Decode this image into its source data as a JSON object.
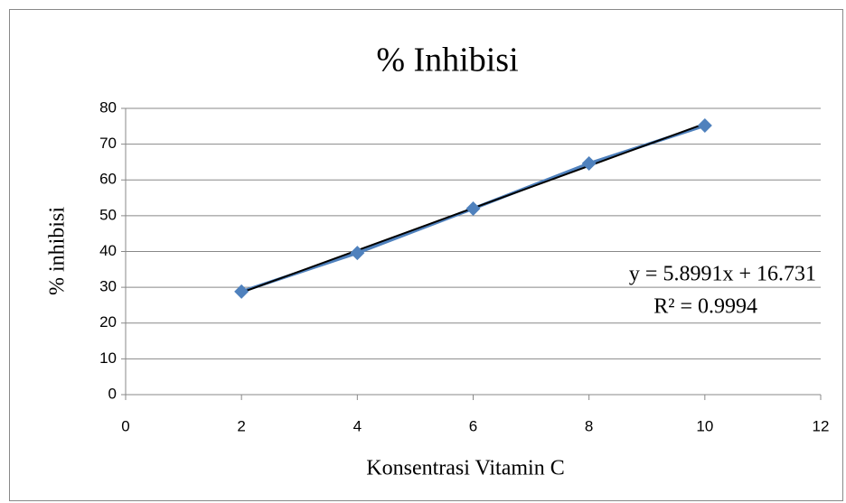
{
  "chart_data": {
    "type": "scatter",
    "title": "% Inhibisi",
    "x_label": "Konsentrasi Vitamin C",
    "y_label": "% inhibisi",
    "series": [
      {
        "name": "% inhibisi",
        "color": "#4f81bd",
        "x": [
          2,
          4,
          6,
          8,
          10
        ],
        "values": [
          28.8,
          39.6,
          52.0,
          64.6,
          75.2
        ]
      }
    ],
    "trendline": {
      "slope": 5.8991,
      "intercept": 16.731,
      "color": "#000000",
      "equation": "y = 5.8991x + 16.731",
      "r_squared": "R² = 0.9994"
    },
    "xlim": [
      0,
      12
    ],
    "xticks": [
      0,
      2,
      4,
      6,
      8,
      10,
      12
    ],
    "ylim": [
      0,
      80
    ],
    "yticks": [
      0,
      10,
      20,
      30,
      40,
      50,
      60,
      70,
      80
    ],
    "grid": true,
    "legend": false
  }
}
